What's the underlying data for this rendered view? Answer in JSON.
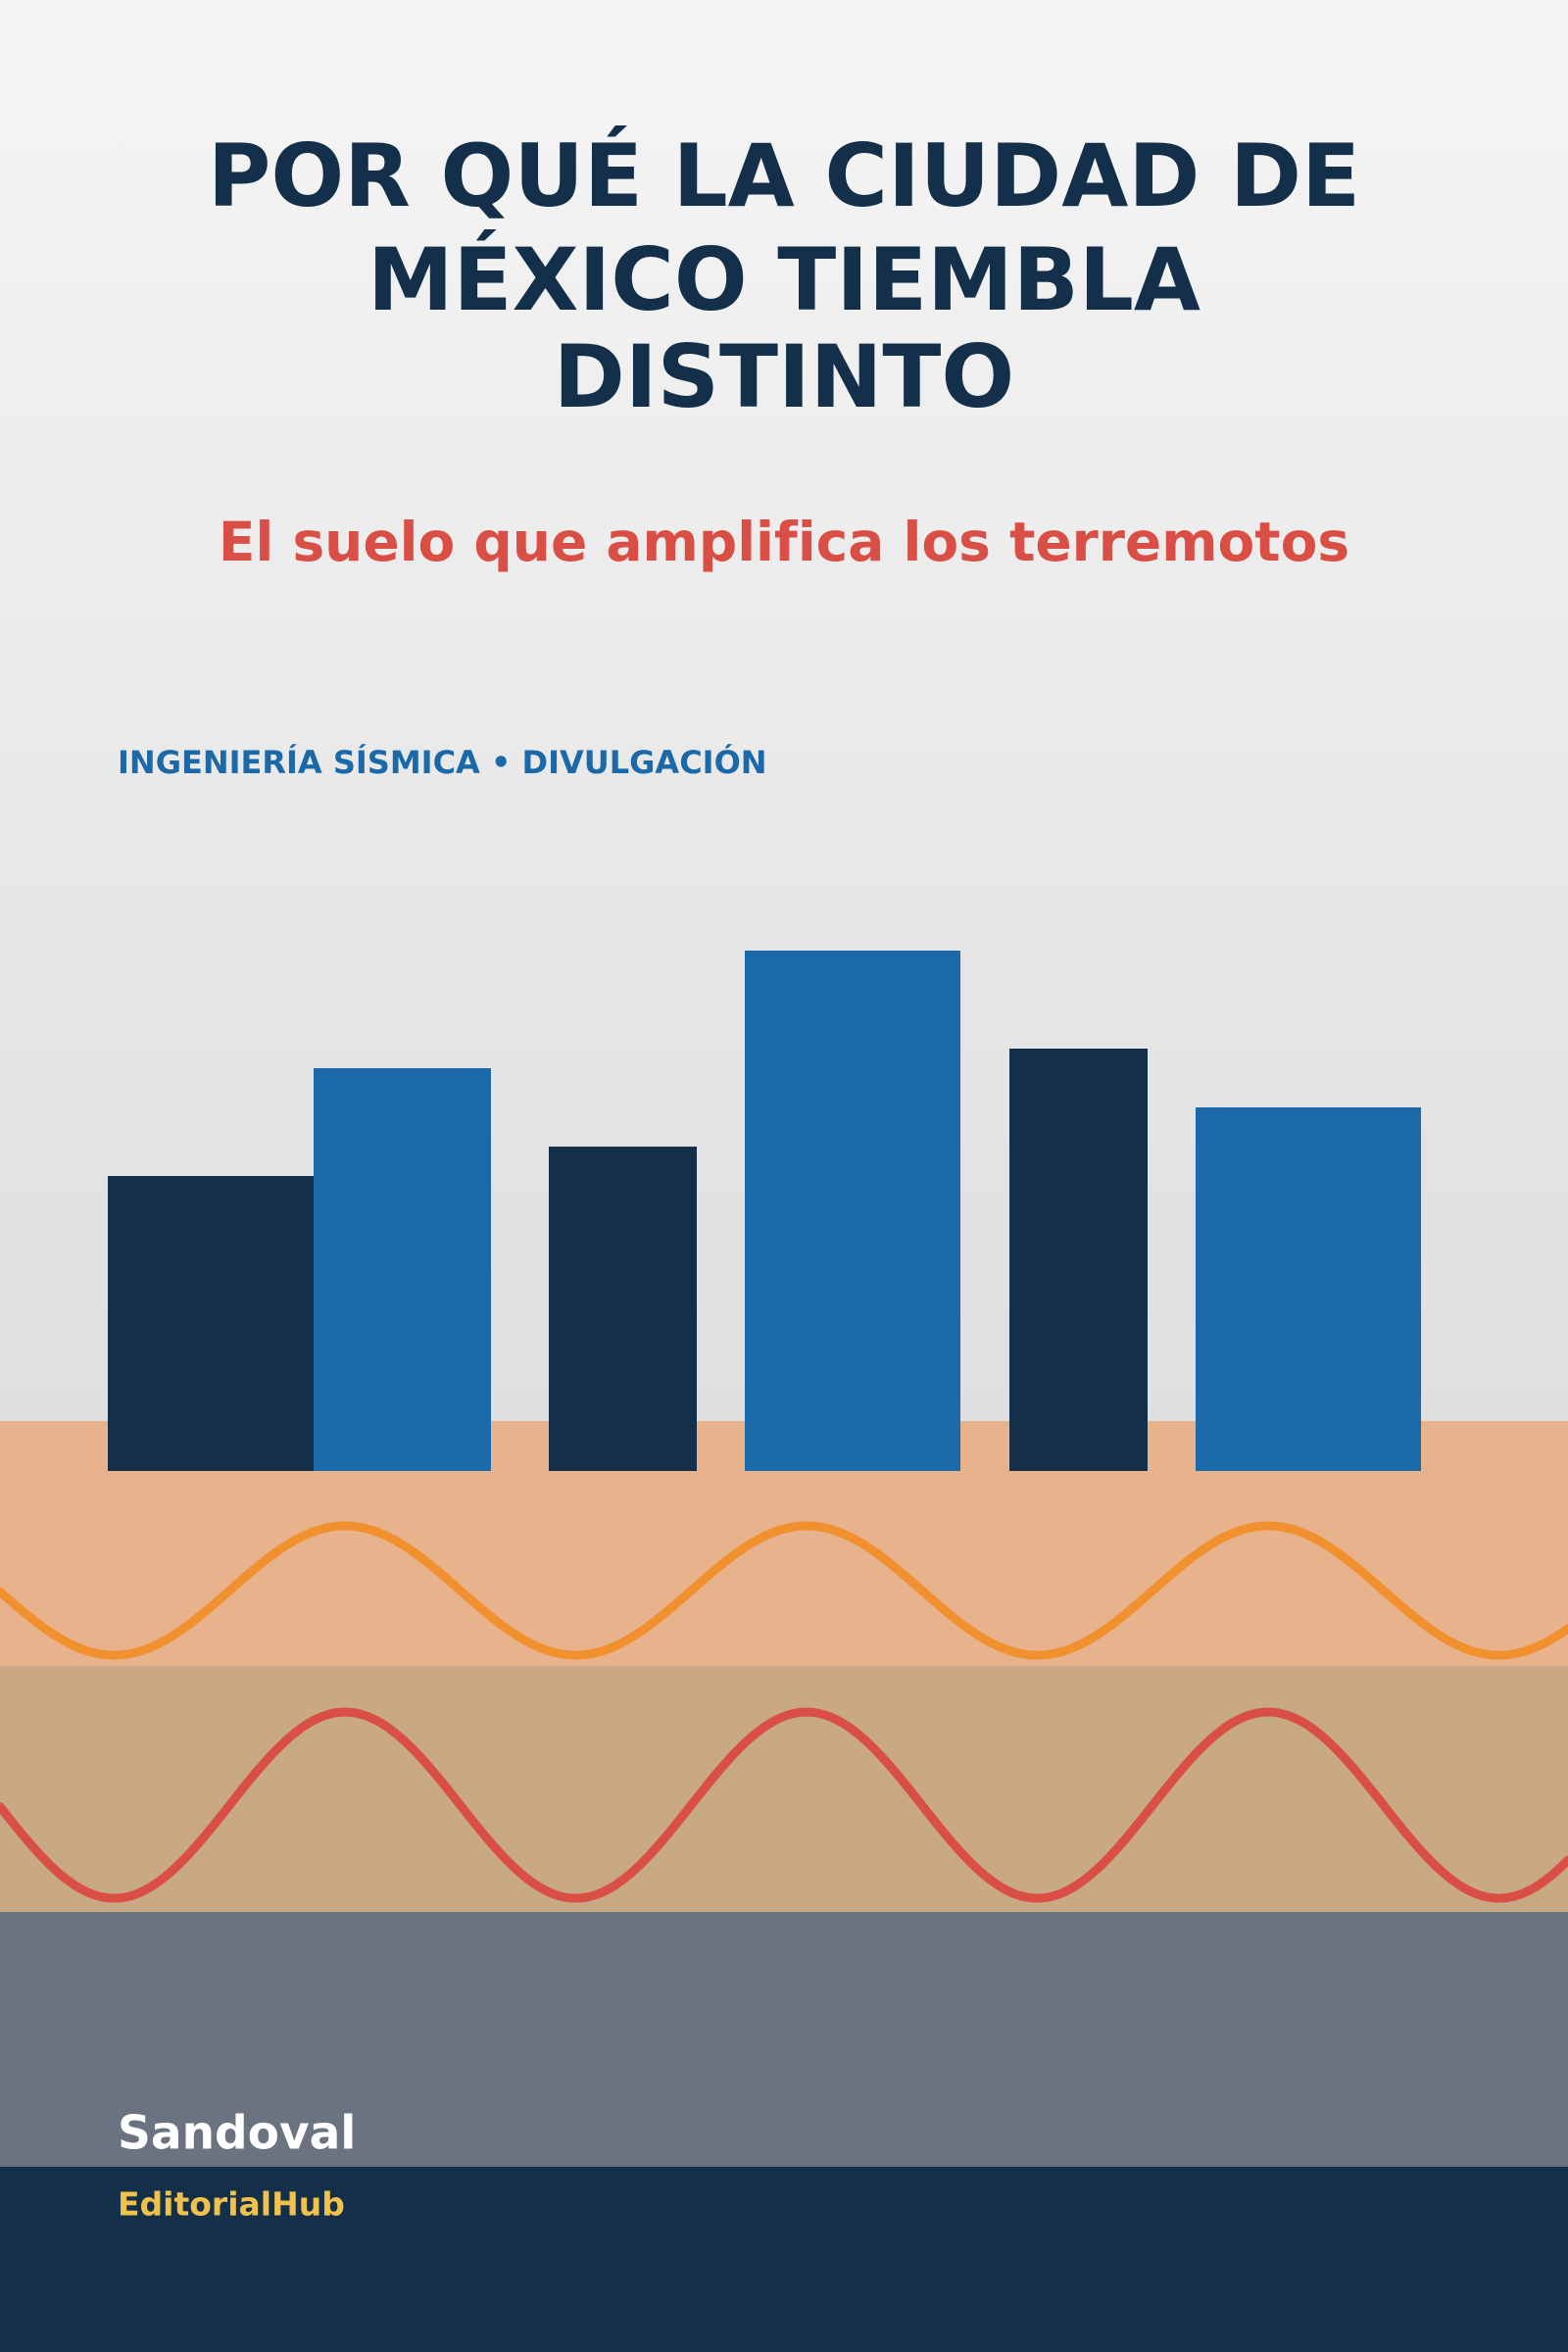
{
  "cover": {
    "title_lines": [
      "POR QUÉ LA CIUDAD DE",
      "MÉXICO TIEMBLA",
      "DISTINTO"
    ],
    "subtitle": "El suelo que amplifica los terremotos",
    "tagline": "INGENIERÍA SÍSMICA • DIVULGACIÓN",
    "author": "Sandoval",
    "publisher": "EditorialHub"
  }
}
